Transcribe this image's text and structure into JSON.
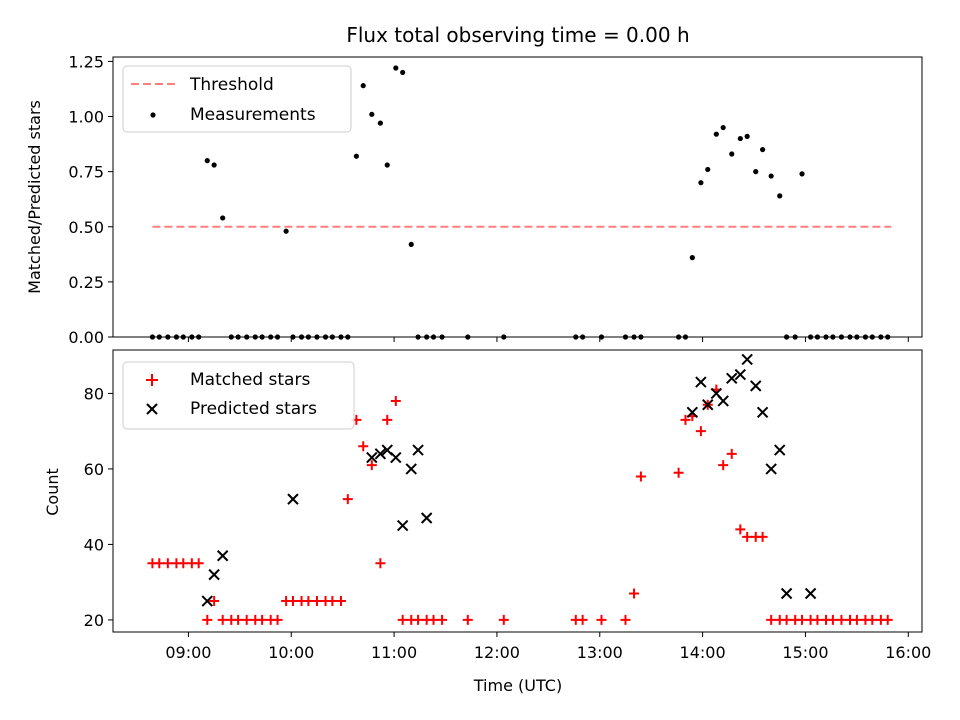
{
  "chart_data": [
    {
      "type": "scatter",
      "title": "Flux total observing time = 0.00 h",
      "ylabel": "Matched/Predicted stars",
      "xlabel": "",
      "xlim": [
        "08:16",
        "16:08"
      ],
      "ylim": [
        0,
        1.27
      ],
      "x_ticks": [
        "09:00",
        "10:00",
        "11:00",
        "12:00",
        "13:00",
        "14:00",
        "15:00",
        "16:00"
      ],
      "y_ticks": [
        "0.00",
        "0.25",
        "0.50",
        "0.75",
        "1.00",
        "1.25"
      ],
      "legend_position": "top-left",
      "series": [
        {
          "name": "Threshold",
          "style": "dashed-line",
          "color": "#ff7f7f",
          "x": [
            "08:39",
            "15:50"
          ],
          "values": [
            0.5,
            0.5
          ]
        },
        {
          "name": "Measurements",
          "style": "dot",
          "color": "#000000",
          "x": [
            "08:39",
            "08:43",
            "08:48",
            "08:53",
            "08:57",
            "09:02",
            "09:06",
            "09:11",
            "09:15",
            "09:20",
            "09:25",
            "09:29",
            "09:34",
            "09:39",
            "09:43",
            "09:48",
            "09:52",
            "09:57",
            "10:01",
            "10:06",
            "10:10",
            "10:15",
            "10:20",
            "10:24",
            "10:29",
            "10:33",
            "10:38",
            "10:42",
            "10:47",
            "10:52",
            "10:56",
            "11:01",
            "11:05",
            "11:10",
            "11:14",
            "11:19",
            "11:23",
            "11:28",
            "11:43",
            "12:04",
            "12:46",
            "12:50",
            "13:01",
            "13:15",
            "13:20",
            "13:24",
            "13:46",
            "13:50",
            "13:54",
            "13:59",
            "14:03",
            "14:08",
            "14:12",
            "14:17",
            "14:22",
            "14:26",
            "14:31",
            "14:35",
            "14:40",
            "14:45",
            "14:49",
            "14:54",
            "14:58",
            "15:03",
            "15:07",
            "15:12",
            "15:16",
            "15:21",
            "15:26",
            "15:30",
            "15:35",
            "15:39",
            "15:44",
            "15:48"
          ],
          "values": [
            0,
            0,
            0,
            0,
            0,
            0,
            0,
            0.8,
            0.78,
            0.54,
            0,
            0,
            0,
            0,
            0,
            0,
            0,
            0.48,
            0,
            0,
            0,
            0,
            0,
            0,
            0,
            0,
            0.82,
            1.14,
            1.01,
            0.97,
            0.78,
            1.22,
            1.2,
            0.42,
            0,
            0,
            0,
            0,
            0,
            0,
            0,
            0,
            0,
            0,
            0,
            0,
            0,
            0,
            0.36,
            0.7,
            0.76,
            0.92,
            0.95,
            0.83,
            0.9,
            0.91,
            0.75,
            0.85,
            0.73,
            0.64,
            0,
            0,
            0.74,
            0,
            0,
            0,
            0,
            0,
            0,
            0,
            0,
            0,
            0,
            0
          ]
        }
      ]
    },
    {
      "type": "scatter",
      "title": "",
      "xlabel": "Time (UTC)",
      "ylabel": "Count",
      "xlim": [
        "08:16",
        "16:08"
      ],
      "ylim": [
        16.8,
        91.5
      ],
      "x_ticks": [
        "09:00",
        "10:00",
        "11:00",
        "12:00",
        "13:00",
        "14:00",
        "15:00",
        "16:00"
      ],
      "y_ticks": [
        "20",
        "40",
        "60",
        "80"
      ],
      "legend_position": "top-left",
      "series": [
        {
          "name": "Matched stars",
          "marker": "plus",
          "color": "#ff0000",
          "x": [
            "08:39",
            "08:43",
            "08:48",
            "08:53",
            "08:57",
            "09:02",
            "09:06",
            "09:11",
            "09:15",
            "09:20",
            "09:25",
            "09:29",
            "09:34",
            "09:39",
            "09:43",
            "09:48",
            "09:52",
            "09:57",
            "10:01",
            "10:06",
            "10:10",
            "10:15",
            "10:20",
            "10:24",
            "10:29",
            "10:33",
            "10:38",
            "10:42",
            "10:47",
            "10:52",
            "10:56",
            "11:01",
            "11:05",
            "11:10",
            "11:14",
            "11:19",
            "11:23",
            "11:28",
            "11:43",
            "12:04",
            "12:46",
            "12:50",
            "13:01",
            "13:15",
            "13:20",
            "13:24",
            "13:46",
            "13:50",
            "13:54",
            "13:59",
            "14:03",
            "14:08",
            "14:12",
            "14:17",
            "14:22",
            "14:26",
            "14:31",
            "14:35",
            "14:40",
            "14:45",
            "14:49",
            "14:54",
            "14:58",
            "15:03",
            "15:07",
            "15:12",
            "15:16",
            "15:21",
            "15:26",
            "15:30",
            "15:35",
            "15:39",
            "15:44",
            "15:48"
          ],
          "values": [
            35,
            35,
            35,
            35,
            35,
            35,
            35,
            20,
            25,
            20,
            20,
            20,
            20,
            20,
            20,
            20,
            20,
            25,
            25,
            25,
            25,
            25,
            25,
            25,
            25,
            52,
            73,
            66,
            61,
            35,
            73,
            78,
            20,
            20,
            20,
            20,
            20,
            20,
            20,
            20,
            20,
            20,
            20,
            20,
            27,
            58,
            59,
            73,
            74,
            70,
            77,
            81,
            61,
            64,
            44,
            42,
            42,
            42,
            20,
            20,
            20,
            20,
            20,
            20,
            20,
            20,
            20,
            20,
            20,
            20,
            20,
            20,
            20,
            20
          ]
        },
        {
          "name": "Predicted stars",
          "marker": "x",
          "color": "#000000",
          "x": [
            "09:11",
            "09:15",
            "09:20",
            "10:01",
            "10:47",
            "10:52",
            "10:56",
            "11:01",
            "11:05",
            "11:10",
            "11:14",
            "11:19",
            "13:54",
            "13:59",
            "14:03",
            "14:08",
            "14:12",
            "14:17",
            "14:22",
            "14:26",
            "14:31",
            "14:35",
            "14:40",
            "14:45",
            "14:49",
            "15:03"
          ],
          "values": [
            25,
            32,
            37,
            52,
            63,
            64,
            65,
            63,
            45,
            60,
            65,
            47,
            75,
            83,
            77,
            80,
            78,
            84,
            85,
            89,
            82,
            75,
            60,
            65,
            27,
            27
          ]
        }
      ]
    }
  ]
}
